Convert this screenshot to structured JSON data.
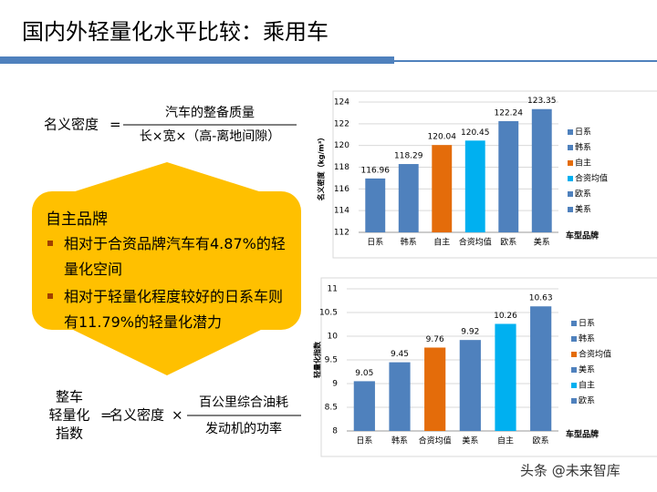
{
  "title": "国内外轻量化水平比较：乘用车",
  "formula1": {
    "lhs": "名义密度",
    "eq": "=",
    "numerator": "汽车的整备质量",
    "denominator": "长×宽×（高-离地间隙）"
  },
  "callout": {
    "heading": "自主品牌",
    "bullets": [
      "相对于合资品牌汽车有4.87%的轻量化空间",
      "相对于轻量化程度较好的日系车则有11.79%的轻量化潜力"
    ]
  },
  "formula2": {
    "lhs": [
      "整车",
      "轻量化",
      "指数"
    ],
    "eq": "=",
    "factor": "名义密度",
    "times": "×",
    "numerator": "百公里综合油耗",
    "denominator": "发动机的功率"
  },
  "watermark": "头条 @未来智库",
  "chart_data": [
    {
      "type": "bar",
      "y_label": "名义密度（kg/m³）",
      "x_label": "车型品牌",
      "categories": [
        "日系",
        "韩系",
        "自主",
        "合资均值",
        "欧系",
        "美系"
      ],
      "values": [
        116.96,
        118.29,
        120.04,
        120.45,
        122.24,
        123.35
      ],
      "colors": [
        "#4f81bd",
        "#4f81bd",
        "#e46c0a",
        "#00b0f0",
        "#4f81bd",
        "#4f81bd"
      ],
      "ylim": [
        112,
        124
      ],
      "yticks": [
        112,
        114,
        116,
        118,
        120,
        122,
        124
      ],
      "grid": true
    },
    {
      "type": "bar",
      "y_label": "轻量化指数",
      "x_label": "车型品牌",
      "categories": [
        "日系",
        "韩系",
        "合资均值",
        "美系",
        "自主",
        "欧系"
      ],
      "values": [
        9.05,
        9.45,
        9.76,
        9.92,
        10.26,
        10.63
      ],
      "colors": [
        "#4f81bd",
        "#4f81bd",
        "#e46c0a",
        "#4f81bd",
        "#00b0f0",
        "#4f81bd"
      ],
      "ylim": [
        8,
        11
      ],
      "yticks": [
        8,
        8.5,
        9,
        9.5,
        10,
        10.5,
        11
      ],
      "grid": true
    }
  ]
}
